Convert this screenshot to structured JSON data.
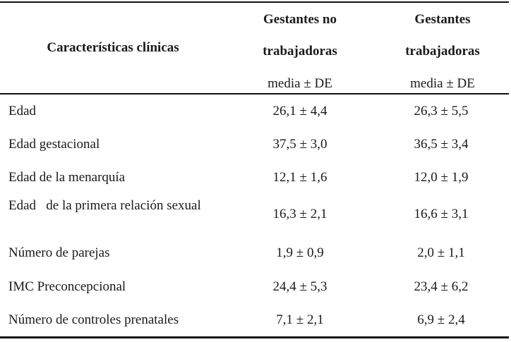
{
  "header": {
    "characteristics": "Características clínicas",
    "col1_line1": "Gestantes no",
    "col1_line2": "trabajadoras",
    "col2_line1": "Gestantes",
    "col2_line2": "trabajadoras",
    "col1_unit": "media ± DE",
    "col2_unit": "media ± DE"
  },
  "rows": [
    {
      "label": "Edad",
      "col1": "26,1 ± 4,4",
      "col2": "26,3 ± 5,5"
    },
    {
      "label": "Edad gestacional",
      "col1": "37,5 ± 3,0",
      "col2": "36,5 ± 3,4"
    },
    {
      "label": "Edad de la menarquía",
      "col1": "12,1 ± 1,6",
      "col2": "12,0 ± 1,9"
    },
    {
      "label": "Edad   de la primera relación sexual",
      "col1": "16,3 ± 2,1",
      "col2": "16,6 ± 3,1"
    },
    {
      "label": "Número de parejas",
      "col1": "1,9 ± 0,9",
      "col2": "2,0 ± 1,1"
    },
    {
      "label": "IMC Preconcepcional",
      "col1": "24,4 ± 5,3",
      "col2": "23,4 ± 6,2"
    },
    {
      "label": "Número de controles prenatales",
      "col1": "7,1 ± 2,1",
      "col2": "6,9 ± 2,4"
    }
  ]
}
